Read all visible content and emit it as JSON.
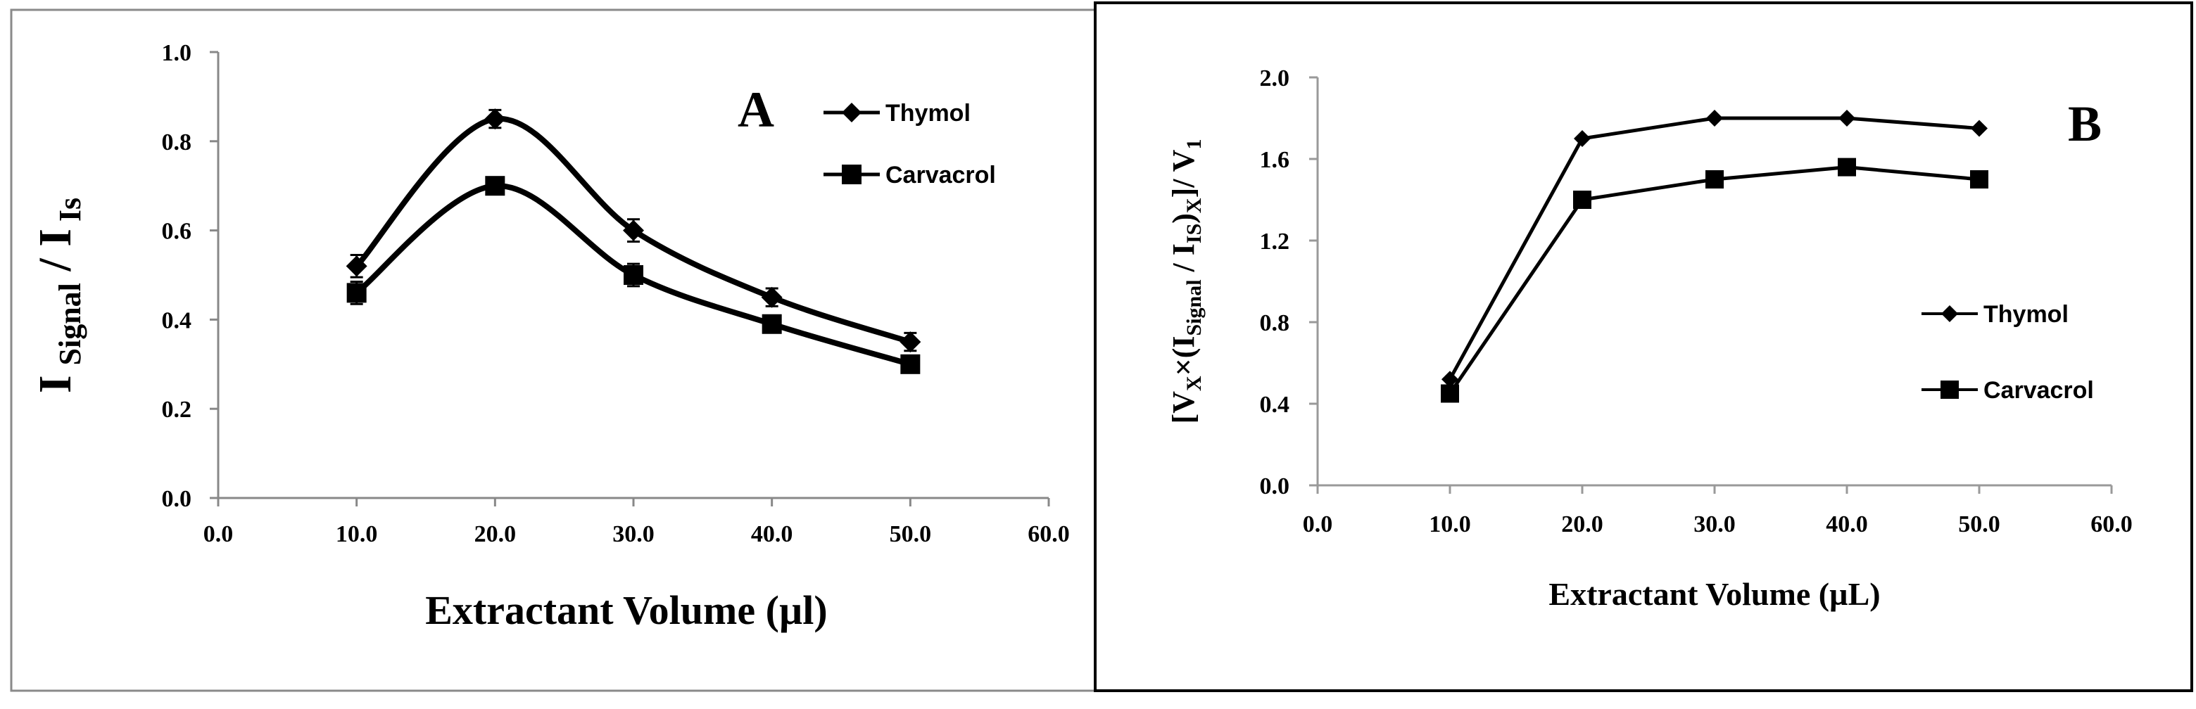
{
  "chart_data": [
    {
      "type": "line",
      "panel_label": "A",
      "x": [
        10.0,
        20.0,
        30.0,
        40.0,
        50.0
      ],
      "series": [
        {
          "name": "Thymol",
          "marker": "diamond",
          "values": [
            0.52,
            0.85,
            0.6,
            0.45,
            0.35
          ],
          "errors": [
            0.025,
            0.02,
            0.025,
            0.02,
            0.02
          ]
        },
        {
          "name": "Carvacrol",
          "marker": "square",
          "values": [
            0.46,
            0.7,
            0.5,
            0.39,
            0.3
          ],
          "errors": [
            0.025,
            0.015,
            0.025,
            0.015,
            0.01
          ]
        }
      ],
      "xlabel": "Extractant Volume (µl)",
      "ylabel": {
        "base1": "I",
        "sub1": "Signal",
        "sep": " / I",
        "sub2": "Is"
      },
      "xlim": [
        0,
        60
      ],
      "ylim": [
        0,
        1.0
      ],
      "xticks": [
        "0.0",
        "10.0",
        "20.0",
        "30.0",
        "40.0",
        "50.0",
        "60.0"
      ],
      "yticks": [
        "0.0",
        "0.2",
        "0.4",
        "0.6",
        "0.8",
        "1.0"
      ],
      "smooth": true,
      "legend_position": "top-right"
    },
    {
      "type": "line",
      "panel_label": "B",
      "x": [
        10.0,
        20.0,
        30.0,
        40.0,
        50.0
      ],
      "series": [
        {
          "name": "Thymol",
          "marker": "diamond",
          "values": [
            0.52,
            1.7,
            1.8,
            1.8,
            1.75
          ]
        },
        {
          "name": "Carvacrol",
          "marker": "square",
          "values": [
            0.45,
            1.4,
            1.5,
            1.56,
            1.5
          ]
        }
      ],
      "xlabel": "Extractant Volume (µL)",
      "ylabel": {
        "t1": "[V",
        "s1": "X",
        "t2": "×(I",
        "s2": "Signal",
        "t3": " / I",
        "s3": "IS",
        "t4": ")",
        "s4": "X",
        "t5": "]/ V",
        "s5": "1"
      },
      "xlim": [
        0,
        60
      ],
      "ylim": [
        0,
        2.0
      ],
      "xticks": [
        "0.0",
        "10.0",
        "20.0",
        "30.0",
        "40.0",
        "50.0",
        "60.0"
      ],
      "yticks": [
        "0.0",
        "0.4",
        "0.8",
        "1.2",
        "1.6",
        "2.0"
      ],
      "smooth": false,
      "legend_position": "right"
    }
  ]
}
